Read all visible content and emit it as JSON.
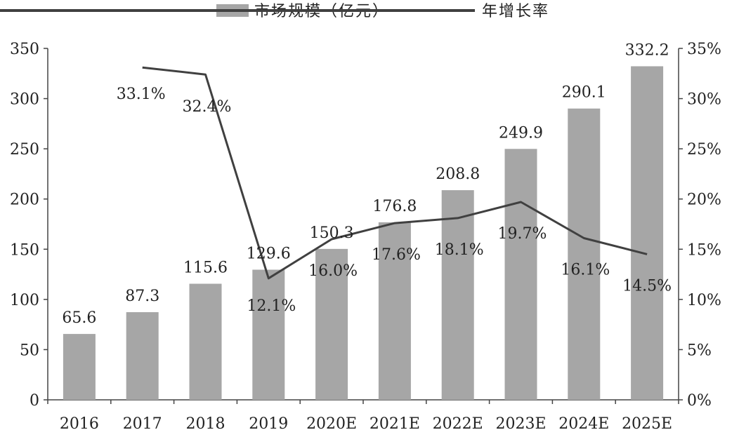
{
  "chart_data": {
    "type": "bar",
    "categories": [
      "2016",
      "2017",
      "2018",
      "2019",
      "2020E",
      "2021E",
      "2022E",
      "2023E",
      "2024E",
      "2025E"
    ],
    "series": [
      {
        "name": "市场规模（亿元）",
        "type": "bar",
        "axis": "left",
        "color": "#a6a6a6",
        "values": [
          65.6,
          87.3,
          115.6,
          129.6,
          150.3,
          176.8,
          208.8,
          249.9,
          290.1,
          332.2
        ],
        "labels": [
          "65.6",
          "87.3",
          "115.6",
          "129.6",
          "150.3",
          "176.8",
          "208.8",
          "249.9",
          "290.1",
          "332.2"
        ]
      },
      {
        "name": "年增长率",
        "type": "line",
        "axis": "right",
        "color": "#404040",
        "values": [
          null,
          33.1,
          32.4,
          12.1,
          16.0,
          17.6,
          18.1,
          19.7,
          16.1,
          14.5
        ],
        "labels": [
          "",
          "33.1%",
          "32.4%",
          "12.1%",
          "16.0%",
          "17.6%",
          "18.1%",
          "19.7%",
          "16.1%",
          "14.5%"
        ]
      }
    ],
    "y_left": {
      "ylim": [
        0,
        350
      ],
      "ticks": [
        "0",
        "50",
        "100",
        "150",
        "200",
        "250",
        "300",
        "350"
      ]
    },
    "y_right": {
      "ylim": [
        0,
        35
      ],
      "ticks": [
        "0%",
        "5%",
        "10%",
        "15%",
        "20%",
        "25%",
        "30%",
        "35%"
      ]
    },
    "grid": false,
    "legend": "top-center"
  }
}
